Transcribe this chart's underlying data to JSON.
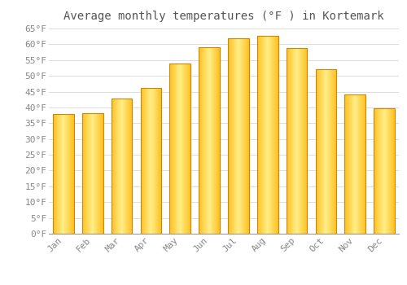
{
  "title": "Average monthly temperatures (°F ) in Kortemark",
  "months": [
    "Jan",
    "Feb",
    "Mar",
    "Apr",
    "May",
    "Jun",
    "Jul",
    "Aug",
    "Sep",
    "Oct",
    "Nov",
    "Dec"
  ],
  "values": [
    38.0,
    38.3,
    42.8,
    46.2,
    54.0,
    59.0,
    62.0,
    62.8,
    58.8,
    52.0,
    44.0,
    39.8
  ],
  "bar_color_light": "#FFD966",
  "bar_color_mid": "#FFC022",
  "bar_color_dark": "#FFA500",
  "bar_edge_color": "#CC8800",
  "background_color": "#FFFFFF",
  "grid_color": "#DDDDDD",
  "title_color": "#555555",
  "tick_color": "#888888",
  "ylim_min": 0,
  "ylim_max": 65,
  "ytick_step": 5,
  "title_fontsize": 10,
  "tick_fontsize": 8
}
